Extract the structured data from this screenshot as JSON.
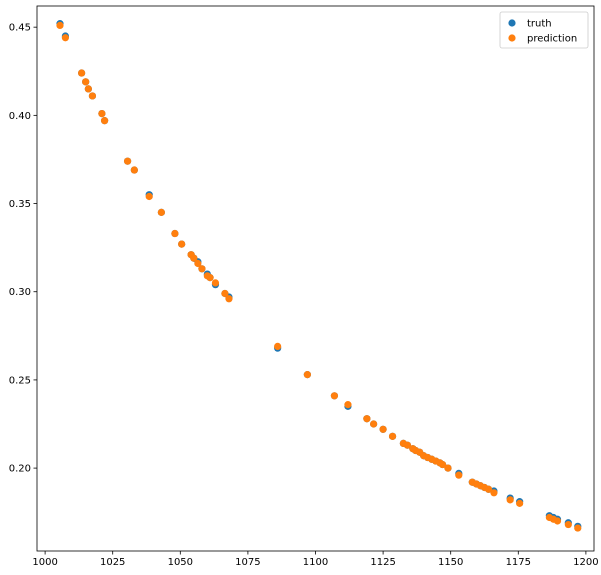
{
  "chart_data": {
    "type": "scatter",
    "title": "",
    "xlabel": "",
    "ylabel": "",
    "xlim": [
      997,
      1203
    ],
    "ylim": [
      0.153,
      0.462
    ],
    "xticks": [
      1000,
      1025,
      1050,
      1075,
      1100,
      1125,
      1150,
      1175,
      1200
    ],
    "xtick_labels": [
      "1000",
      "1025",
      "1050",
      "1075",
      "1100",
      "1125",
      "1150",
      "1175",
      "1200"
    ],
    "yticks": [
      0.2,
      0.25,
      0.3,
      0.35,
      0.4,
      0.45
    ],
    "ytick_labels": [
      "0.20",
      "0.25",
      "0.30",
      "0.35",
      "0.40",
      "0.45"
    ],
    "grid": false,
    "legend": "top-right",
    "series": [
      {
        "name": "truth",
        "color": "#1f77b4",
        "points": [
          [
            1005.5,
            0.452
          ],
          [
            1007.5,
            0.445
          ],
          [
            1013.5,
            0.424
          ],
          [
            1015.0,
            0.419
          ],
          [
            1016.0,
            0.415
          ],
          [
            1017.5,
            0.411
          ],
          [
            1021.0,
            0.401
          ],
          [
            1022.0,
            0.397
          ],
          [
            1030.5,
            0.374
          ],
          [
            1033.0,
            0.369
          ],
          [
            1038.5,
            0.355
          ],
          [
            1043.0,
            0.345
          ],
          [
            1048.0,
            0.333
          ],
          [
            1050.5,
            0.327
          ],
          [
            1054.0,
            0.321
          ],
          [
            1055.0,
            0.319
          ],
          [
            1056.5,
            0.317
          ],
          [
            1058.0,
            0.313
          ],
          [
            1060.0,
            0.31
          ],
          [
            1061.0,
            0.308
          ],
          [
            1063.0,
            0.304
          ],
          [
            1066.5,
            0.299
          ],
          [
            1068.0,
            0.297
          ],
          [
            1086.0,
            0.268
          ],
          [
            1097.0,
            0.253
          ],
          [
            1107.0,
            0.241
          ],
          [
            1112.0,
            0.235
          ],
          [
            1119.0,
            0.228
          ],
          [
            1121.5,
            0.225
          ],
          [
            1125.0,
            0.222
          ],
          [
            1128.5,
            0.218
          ],
          [
            1132.5,
            0.214
          ],
          [
            1134.0,
            0.213
          ],
          [
            1136.0,
            0.211
          ],
          [
            1137.0,
            0.21
          ],
          [
            1138.5,
            0.209
          ],
          [
            1140.0,
            0.207
          ],
          [
            1141.5,
            0.206
          ],
          [
            1143.0,
            0.205
          ],
          [
            1144.5,
            0.204
          ],
          [
            1146.0,
            0.203
          ],
          [
            1147.0,
            0.202
          ],
          [
            1149.0,
            0.2
          ],
          [
            1153.0,
            0.197
          ],
          [
            1158.0,
            0.192
          ],
          [
            1159.5,
            0.191
          ],
          [
            1161.0,
            0.19
          ],
          [
            1162.5,
            0.189
          ],
          [
            1164.0,
            0.188
          ],
          [
            1166.0,
            0.187
          ],
          [
            1172.0,
            0.183
          ],
          [
            1175.5,
            0.181
          ],
          [
            1186.5,
            0.173
          ],
          [
            1188.0,
            0.172
          ],
          [
            1189.5,
            0.171
          ],
          [
            1193.5,
            0.169
          ],
          [
            1197.0,
            0.167
          ]
        ]
      },
      {
        "name": "prediction",
        "color": "#ff7f0e",
        "points": [
          [
            1005.5,
            0.451
          ],
          [
            1007.5,
            0.444
          ],
          [
            1013.5,
            0.424
          ],
          [
            1015.0,
            0.419
          ],
          [
            1016.0,
            0.415
          ],
          [
            1017.5,
            0.411
          ],
          [
            1021.0,
            0.401
          ],
          [
            1022.0,
            0.397
          ],
          [
            1030.5,
            0.374
          ],
          [
            1033.0,
            0.369
          ],
          [
            1038.5,
            0.354
          ],
          [
            1043.0,
            0.345
          ],
          [
            1048.0,
            0.333
          ],
          [
            1050.5,
            0.327
          ],
          [
            1054.0,
            0.321
          ],
          [
            1055.0,
            0.319
          ],
          [
            1056.5,
            0.316
          ],
          [
            1058.0,
            0.313
          ],
          [
            1060.0,
            0.309
          ],
          [
            1061.0,
            0.308
          ],
          [
            1063.0,
            0.305
          ],
          [
            1066.5,
            0.299
          ],
          [
            1068.0,
            0.296
          ],
          [
            1086.0,
            0.269
          ],
          [
            1097.0,
            0.253
          ],
          [
            1107.0,
            0.241
          ],
          [
            1112.0,
            0.236
          ],
          [
            1119.0,
            0.228
          ],
          [
            1121.5,
            0.225
          ],
          [
            1125.0,
            0.222
          ],
          [
            1128.5,
            0.218
          ],
          [
            1132.5,
            0.214
          ],
          [
            1134.0,
            0.213
          ],
          [
            1136.0,
            0.211
          ],
          [
            1137.0,
            0.21
          ],
          [
            1138.5,
            0.209
          ],
          [
            1140.0,
            0.207
          ],
          [
            1141.5,
            0.206
          ],
          [
            1143.0,
            0.205
          ],
          [
            1144.5,
            0.204
          ],
          [
            1146.0,
            0.203
          ],
          [
            1147.0,
            0.202
          ],
          [
            1149.0,
            0.2
          ],
          [
            1153.0,
            0.196
          ],
          [
            1158.0,
            0.192
          ],
          [
            1159.5,
            0.191
          ],
          [
            1161.0,
            0.19
          ],
          [
            1162.5,
            0.189
          ],
          [
            1164.0,
            0.188
          ],
          [
            1166.0,
            0.186
          ],
          [
            1172.0,
            0.182
          ],
          [
            1175.5,
            0.18
          ],
          [
            1186.5,
            0.172
          ],
          [
            1188.0,
            0.171
          ],
          [
            1189.5,
            0.17
          ],
          [
            1193.5,
            0.168
          ],
          [
            1197.0,
            0.166
          ]
        ]
      }
    ]
  }
}
